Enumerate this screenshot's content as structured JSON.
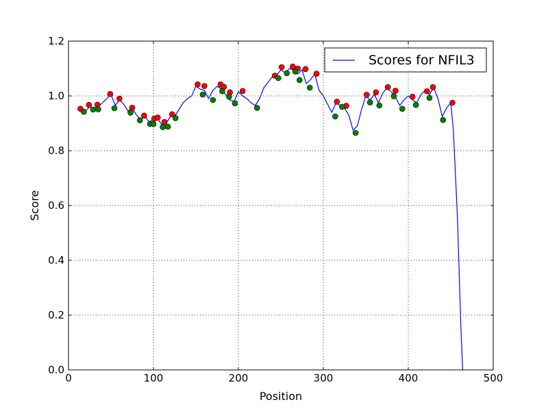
{
  "chart_data": {
    "type": "line",
    "title": "",
    "xlabel": "Position",
    "ylabel": "Score",
    "xlim": [
      0,
      500
    ],
    "ylim": [
      0,
      1.2
    ],
    "xticks": [
      0,
      100,
      200,
      300,
      400,
      500
    ],
    "yticks": [
      0.0,
      0.2,
      0.4,
      0.6,
      0.8,
      1.0,
      1.2
    ],
    "xtick_labels": [
      "0",
      "100",
      "200",
      "300",
      "400",
      "500"
    ],
    "ytick_labels": [
      "0.0",
      "0.2",
      "0.4",
      "0.6",
      "0.8",
      "1.0",
      "1.2"
    ],
    "grid": true,
    "legend": {
      "placement": "top-right",
      "entries": [
        "Scores for NFIL3"
      ]
    },
    "series": [
      {
        "name": "Scores for NFIL3",
        "kind": "line",
        "color": "#0000ff",
        "x": [
          14,
          20,
          25,
          30,
          35,
          40,
          45,
          50,
          55,
          60,
          65,
          70,
          75,
          80,
          85,
          90,
          95,
          100,
          105,
          110,
          115,
          120,
          125,
          130,
          135,
          140,
          145,
          150,
          155,
          160,
          165,
          170,
          175,
          180,
          185,
          190,
          195,
          200,
          205,
          210,
          215,
          220,
          225,
          230,
          235,
          240,
          245,
          250,
          255,
          260,
          265,
          270,
          275,
          280,
          285,
          290,
          295,
          300,
          305,
          310,
          315,
          320,
          325,
          330,
          335,
          340,
          345,
          350,
          355,
          360,
          365,
          370,
          375,
          380,
          385,
          390,
          395,
          400,
          405,
          410,
          415,
          420,
          425,
          430,
          435,
          440,
          445,
          450,
          453,
          455,
          458,
          460,
          462,
          464
        ],
        "y": [
          0.95,
          0.945,
          0.96,
          0.955,
          0.96,
          0.975,
          0.99,
          1.005,
          0.965,
          0.985,
          0.97,
          0.945,
          0.955,
          0.93,
          0.915,
          0.925,
          0.905,
          0.915,
          0.915,
          0.895,
          0.9,
          0.925,
          0.925,
          0.95,
          0.975,
          0.99,
          1.0,
          1.035,
          1.025,
          1.02,
          0.99,
          1.02,
          1.035,
          1.025,
          1.005,
          0.985,
          0.98,
          1.015,
          1.0,
          0.99,
          0.975,
          0.965,
          0.99,
          1.03,
          1.05,
          1.07,
          1.075,
          1.095,
          1.085,
          1.1,
          1.095,
          1.08,
          1.095,
          1.045,
          1.06,
          1.08,
          1.02,
          1.0,
          0.97,
          0.94,
          0.975,
          0.965,
          0.955,
          0.93,
          0.875,
          0.89,
          0.95,
          1.0,
          0.985,
          1.005,
          0.975,
          1.01,
          1.03,
          1.015,
          0.995,
          0.965,
          0.985,
          1.0,
          0.985,
          0.975,
          1.005,
          1.02,
          1.005,
          1.03,
          0.99,
          0.925,
          0.955,
          0.975,
          0.88,
          0.75,
          0.55,
          0.35,
          0.15,
          0.0
        ]
      },
      {
        "name": "",
        "kind": "points",
        "color": "#ff0000",
        "x": [
          14,
          24,
          34,
          49,
          60,
          75,
          89,
          101,
          105,
          113,
          122,
          152,
          160,
          179,
          183,
          190,
          205,
          243,
          251,
          264,
          270,
          279,
          292,
          316,
          327,
          351,
          362,
          376,
          385,
          405,
          422,
          429,
          452
        ],
        "y": [
          0.953,
          0.967,
          0.968,
          1.007,
          0.99,
          0.957,
          0.928,
          0.917,
          0.921,
          0.905,
          0.933,
          1.042,
          1.036,
          1.042,
          1.033,
          1.013,
          1.018,
          1.074,
          1.105,
          1.107,
          1.1,
          1.098,
          1.081,
          0.979,
          0.964,
          1.004,
          1.013,
          1.032,
          1.019,
          0.997,
          1.017,
          1.032,
          0.975
        ]
      },
      {
        "name": "",
        "kind": "points",
        "color": "#008000",
        "x": [
          18,
          29,
          35,
          54,
          73,
          84,
          96,
          100,
          111,
          117,
          126,
          158,
          170,
          181,
          189,
          196,
          222,
          247,
          257,
          267,
          272,
          284,
          314,
          322,
          338,
          355,
          366,
          383,
          393,
          409,
          425,
          441
        ],
        "y": [
          0.942,
          0.95,
          0.951,
          0.955,
          0.939,
          0.911,
          0.898,
          0.897,
          0.886,
          0.888,
          0.919,
          1.005,
          0.985,
          1.017,
          0.997,
          0.973,
          0.956,
          1.065,
          1.083,
          1.089,
          1.058,
          1.03,
          0.925,
          0.96,
          0.865,
          0.976,
          0.965,
          0.999,
          0.953,
          0.967,
          0.993,
          0.912
        ]
      }
    ]
  }
}
